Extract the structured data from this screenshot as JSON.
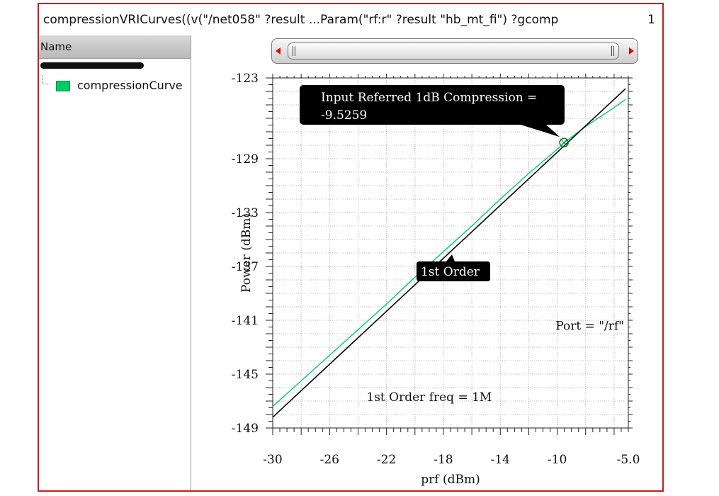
{
  "window": {
    "title": "compressionVRICurves((v(\"/net058\" ?result ...Param(\"rf:r\" ?result \"hb_mt_fi\") ?gcomp",
    "page_indicator": "1"
  },
  "browser": {
    "header": "Name",
    "items": [
      {
        "label": "compressionCurve",
        "color": "#00cc66"
      }
    ]
  },
  "colors": {
    "frame_border": "#c41f24",
    "series_green": "#00cc66",
    "series_black": "#000000",
    "marker": "#007a2e"
  },
  "chart_data": {
    "type": "line",
    "xlabel": "prf (dBm)",
    "ylabel": "Power (dBm)",
    "xlim": [
      -30,
      -5
    ],
    "ylim": [
      -149,
      -123
    ],
    "xticks": [
      {
        "value": -30,
        "label": "-30"
      },
      {
        "value": -26,
        "label": "-26"
      },
      {
        "value": -22,
        "label": "-22"
      },
      {
        "value": -18,
        "label": "-18"
      },
      {
        "value": -14,
        "label": "-14"
      },
      {
        "value": -10,
        "label": "-10"
      },
      {
        "value": -5,
        "label": "-5.0"
      }
    ],
    "yticks": [
      {
        "value": -123,
        "label": "-123"
      },
      {
        "value": -129,
        "label": "-129"
      },
      {
        "value": -133,
        "label": "-133"
      },
      {
        "value": -137,
        "label": "-137"
      },
      {
        "value": -141,
        "label": "-141"
      },
      {
        "value": -145,
        "label": "-145"
      },
      {
        "value": -149,
        "label": "-149"
      }
    ],
    "grid": true,
    "series": [
      {
        "name": "compressionCurve",
        "color": "#00cc66",
        "x": [
          -30,
          -28,
          -26,
          -24,
          -22,
          -20,
          -18,
          -16,
          -14,
          -12,
          -10,
          -9.5,
          -8,
          -6,
          -5.2
        ],
        "y": [
          -147.4,
          -145.5,
          -143.6,
          -141.7,
          -139.8,
          -137.8,
          -135.9,
          -134.0,
          -132.0,
          -130.1,
          -128.3,
          -127.8,
          -126.6,
          -125.2,
          -124.6
        ]
      },
      {
        "name": "1st Order",
        "color": "#000000",
        "x": [
          -30,
          -5.2
        ],
        "y": [
          -148.2,
          -123.8
        ]
      }
    ],
    "annotations": {
      "compression_label": "Input Referred 1dB Compression =",
      "compression_value": "-9.5259",
      "compression_point": {
        "x": -9.5259,
        "y": -127.8
      },
      "first_order_label": "1st Order",
      "first_order_point": {
        "x": -17.6,
        "y": -136.0
      },
      "port_text": "Port = \"/rf\"",
      "freq_text": "1st Order freq = 1M"
    }
  }
}
